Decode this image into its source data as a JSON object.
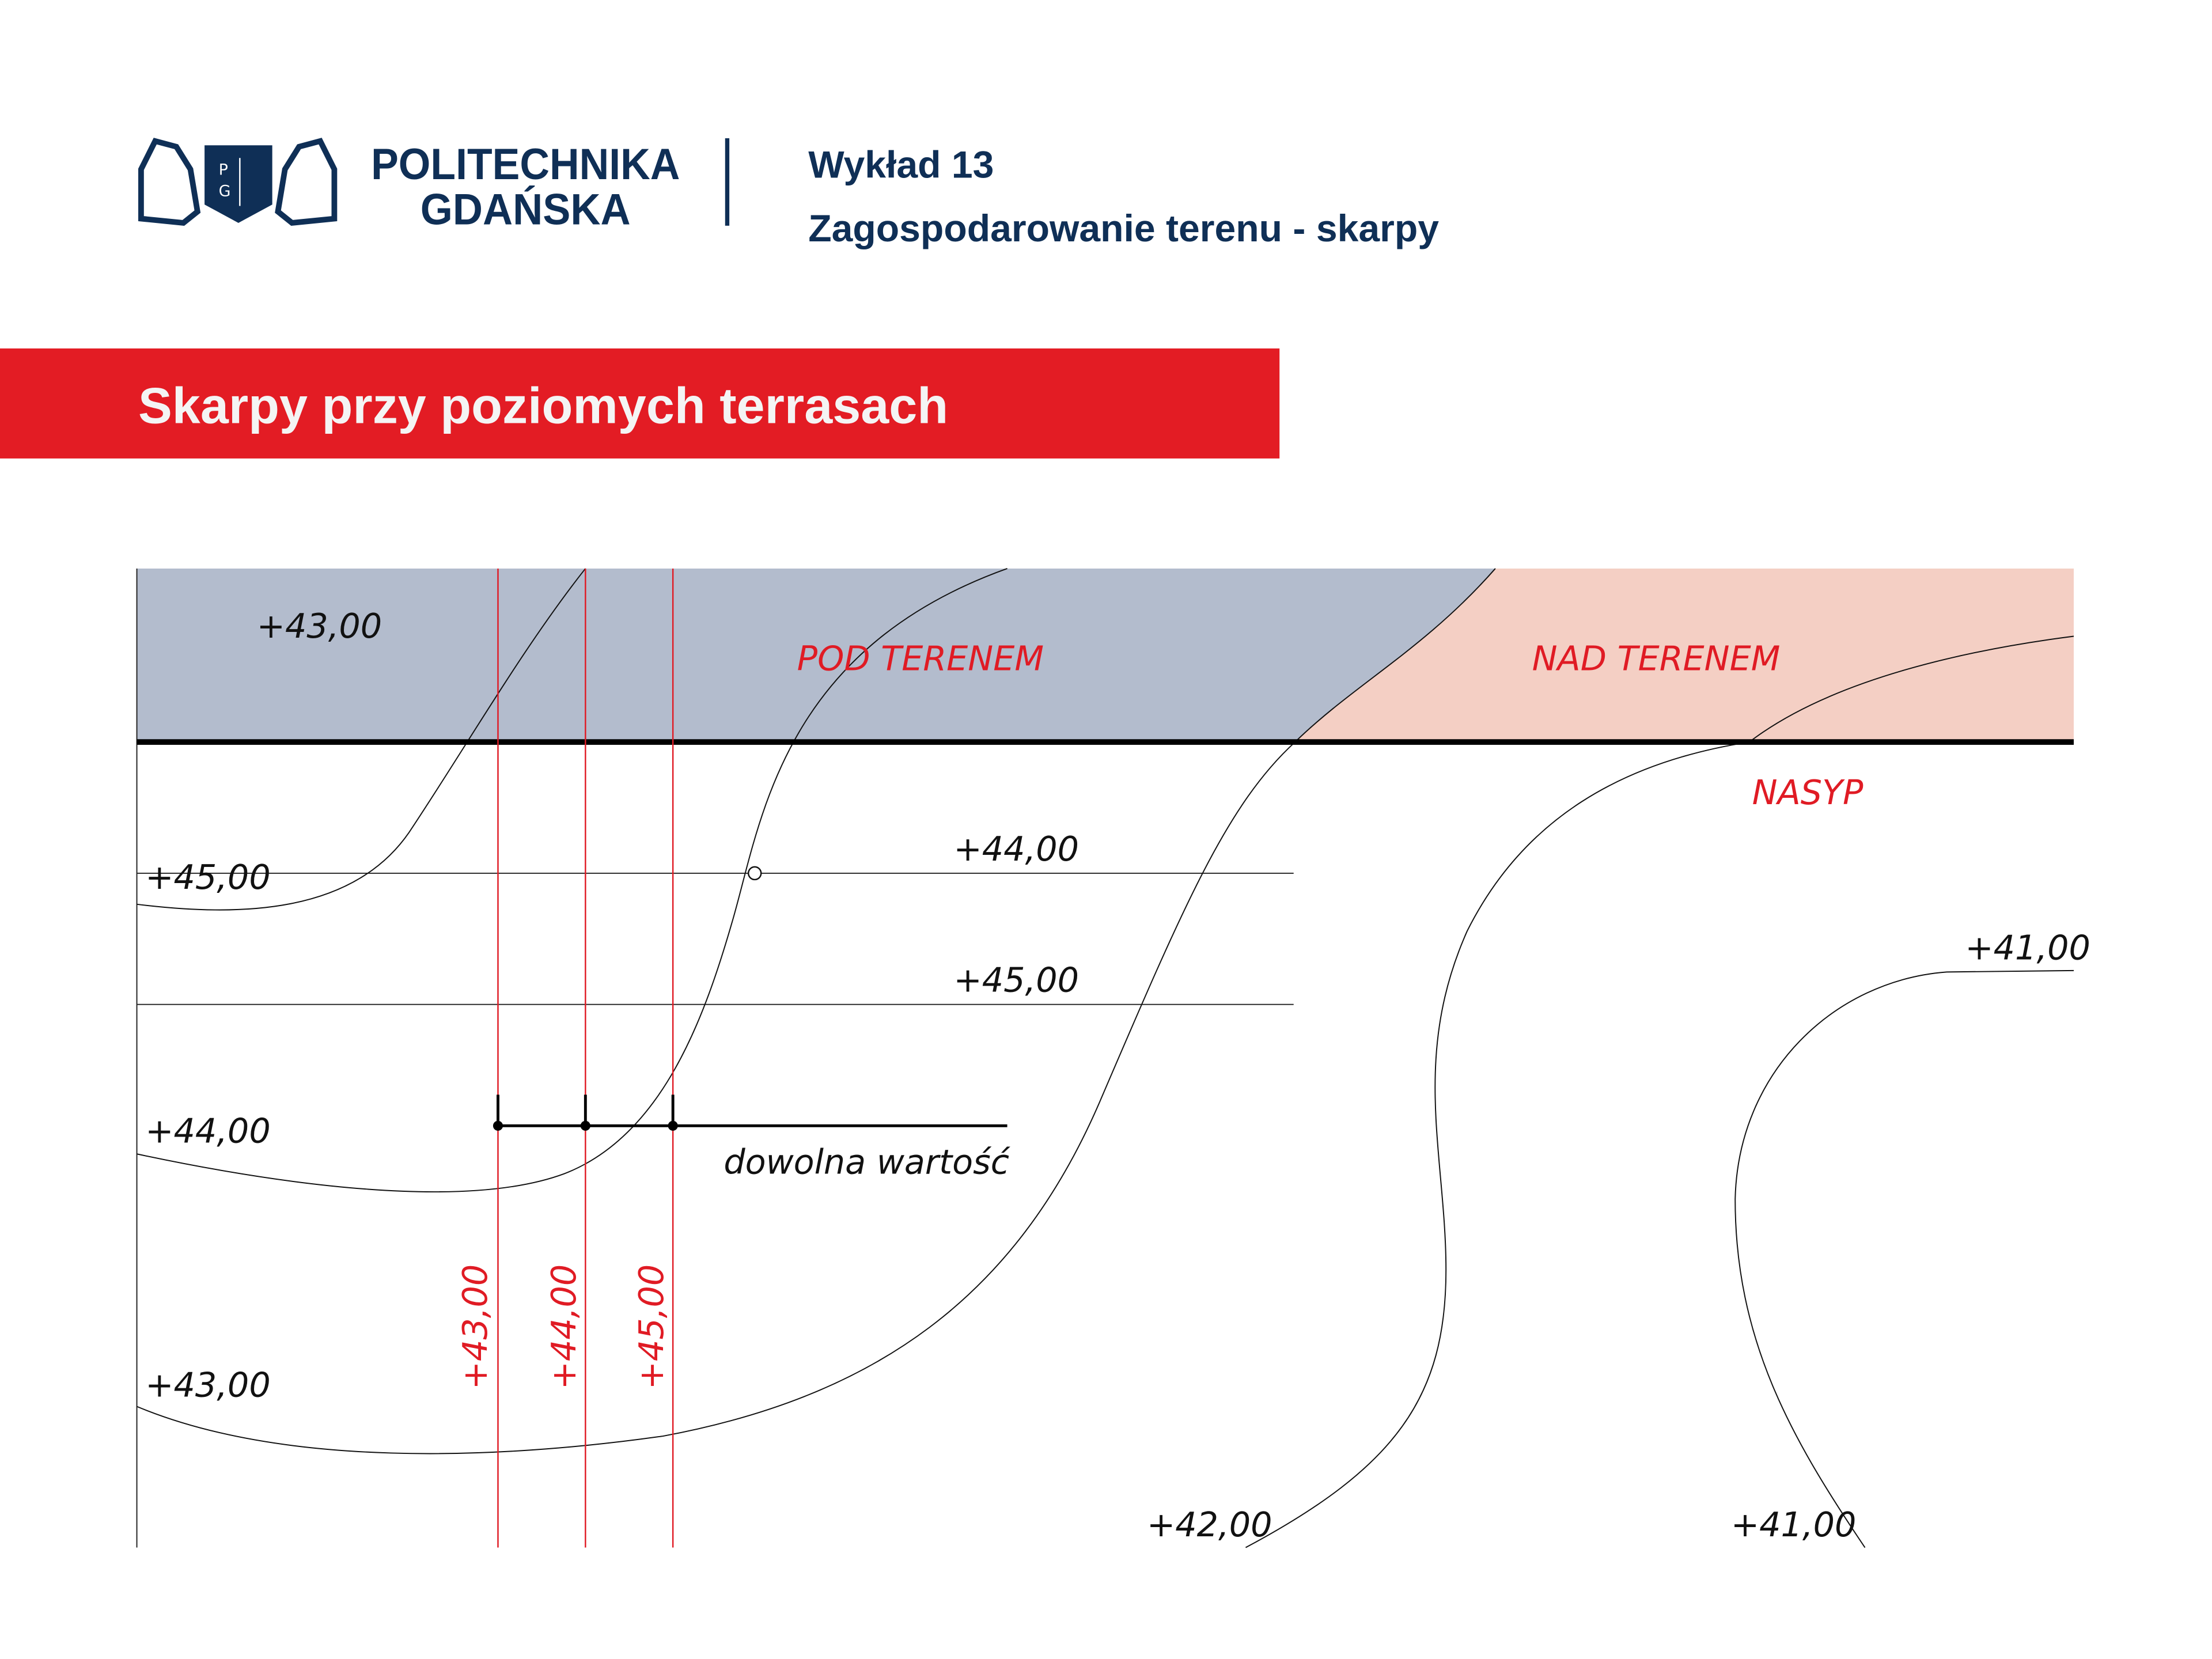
{
  "header": {
    "logo": {
      "line1": "POLITECHNIKA",
      "line2": "GDAŃSKA",
      "shield_letters": [
        "P",
        "G"
      ]
    },
    "lecture": "Wykład 13",
    "subtitle": "Zagospodarowanie terenu - skarpy"
  },
  "banner": {
    "title": "Skarpy przy poziomych terrasach"
  },
  "drawing": {
    "zones": {
      "cut": "POD TERENEM",
      "fill": "NAD TERENEM",
      "embankment": "NASYP"
    },
    "labels": {
      "top_left": "+43,00",
      "left_45": "+45,00",
      "left_44": "+44,00",
      "left_43": "+43,00",
      "terrace_44": "+44,00",
      "terrace_45": "+45,00",
      "right_41_top": "+41,00",
      "bottom_42": "+42,00",
      "bottom_41": "+41,00",
      "arbitrary": "dowolna  wartość"
    },
    "vertical_labels": [
      "+43,00",
      "+44,00",
      "+45,00"
    ]
  },
  "colors": {
    "brand": "#0f2f56",
    "banner": "#e31c24",
    "cut_zone": "#b3bccd",
    "fill_zone": "#f4cfc4",
    "red_line": "#e01b24"
  }
}
